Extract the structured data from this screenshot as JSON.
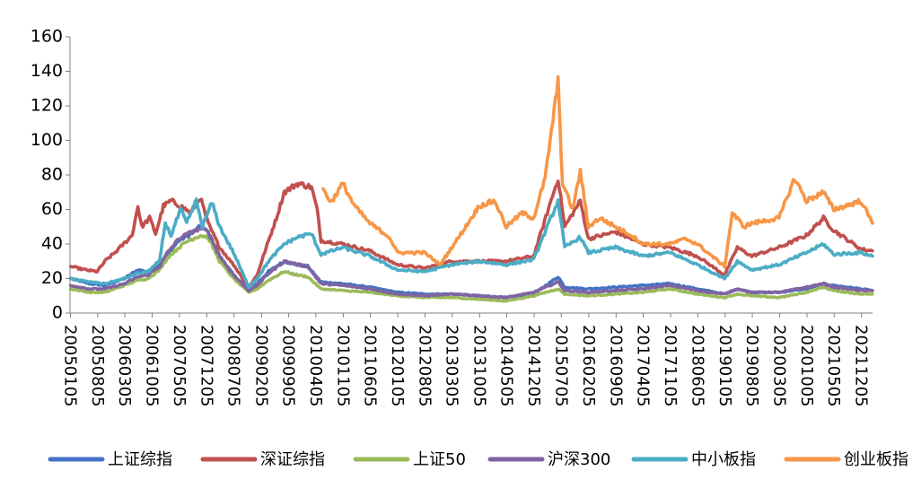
{
  "chart_data": {
    "type": "line",
    "title": "",
    "xlabel": "",
    "ylabel": "",
    "ylim": [
      0,
      160
    ],
    "yticks": [
      0,
      20,
      40,
      60,
      80,
      100,
      120,
      140,
      160
    ],
    "xlim": [
      20050101,
      20220301
    ],
    "xticks": [
      "20050105",
      "20050805",
      "20060305",
      "20061005",
      "20070505",
      "20071205",
      "20080705",
      "20090205",
      "20090905",
      "20100405",
      "20101105",
      "20110605",
      "20120105",
      "20120805",
      "20130305",
      "20131005",
      "20140505",
      "20141205",
      "20150705",
      "20160205",
      "20160905",
      "20170405",
      "20171105",
      "20180605",
      "20190105",
      "20190805",
      "20200305",
      "20201005",
      "20210505",
      "20211205"
    ],
    "grid": false,
    "legend": "bottom",
    "colors": {
      "上证综指": "#4472c4",
      "深证综指": "#c0504d",
      "上证50": "#9bbb59",
      "沪深300": "#8064a2",
      "中小板指": "#4bacc6",
      "创业板指": "#f79646"
    },
    "series": [
      {
        "name": "上证综指",
        "points": [
          [
            "2005-01-05",
            20
          ],
          [
            "2005-06-01",
            17
          ],
          [
            "2005-10-01",
            16
          ],
          [
            "2006-03-01",
            20
          ],
          [
            "2006-06-15",
            25
          ],
          [
            "2006-09-01",
            24
          ],
          [
            "2006-12-01",
            28
          ],
          [
            "2007-02-01",
            34
          ],
          [
            "2007-05-01",
            42
          ],
          [
            "2007-07-15",
            45
          ],
          [
            "2007-10-15",
            50
          ],
          [
            "2007-12-15",
            47
          ],
          [
            "2008-03-15",
            33
          ],
          [
            "2008-07-01",
            22
          ],
          [
            "2008-10-28",
            14
          ],
          [
            "2009-01-01",
            17
          ],
          [
            "2009-04-01",
            24
          ],
          [
            "2009-08-01",
            30
          ],
          [
            "2009-11-15",
            28
          ],
          [
            "2010-02-01",
            27
          ],
          [
            "2010-05-15",
            18
          ],
          [
            "2010-11-01",
            17
          ],
          [
            "2011-06-01",
            15
          ],
          [
            "2012-01-01",
            12
          ],
          [
            "2012-08-01",
            11
          ],
          [
            "2013-03-01",
            11
          ],
          [
            "2013-10-01",
            10
          ],
          [
            "2014-05-01",
            9
          ],
          [
            "2014-12-01",
            11
          ],
          [
            "2015-06-10",
            21
          ],
          [
            "2015-08-01",
            15
          ],
          [
            "2016-02-01",
            14
          ],
          [
            "2016-09-01",
            15
          ],
          [
            "2017-04-01",
            16
          ],
          [
            "2017-11-01",
            17
          ],
          [
            "2018-06-01",
            14
          ],
          [
            "2019-01-01",
            11
          ],
          [
            "2019-04-10",
            14
          ],
          [
            "2019-08-01",
            12
          ],
          [
            "2020-03-01",
            12
          ],
          [
            "2020-10-01",
            14
          ],
          [
            "2021-02-10",
            17
          ],
          [
            "2021-05-01",
            16
          ],
          [
            "2021-12-01",
            14
          ],
          [
            "2022-02-28",
            13
          ]
        ]
      },
      {
        "name": "深证综指",
        "points": [
          [
            "2005-01-05",
            27
          ],
          [
            "2005-05-01",
            25
          ],
          [
            "2005-08-01",
            24
          ],
          [
            "2005-10-01",
            30
          ],
          [
            "2006-01-01",
            36
          ],
          [
            "2006-05-01",
            45
          ],
          [
            "2006-06-15",
            62
          ],
          [
            "2006-07-15",
            50
          ],
          [
            "2006-09-15",
            55
          ],
          [
            "2006-11-01",
            46
          ],
          [
            "2007-01-01",
            62
          ],
          [
            "2007-03-01",
            65
          ],
          [
            "2007-05-15",
            62
          ],
          [
            "2007-08-01",
            58
          ],
          [
            "2007-10-15",
            67
          ],
          [
            "2007-12-15",
            52
          ],
          [
            "2008-03-15",
            38
          ],
          [
            "2008-07-01",
            28
          ],
          [
            "2008-10-28",
            15
          ],
          [
            "2009-01-01",
            22
          ],
          [
            "2009-04-01",
            42
          ],
          [
            "2009-06-01",
            55
          ],
          [
            "2009-08-01",
            70
          ],
          [
            "2009-11-15",
            75
          ],
          [
            "2010-03-01",
            73
          ],
          [
            "2010-04-15",
            60
          ],
          [
            "2010-05-15",
            42
          ],
          [
            "2010-11-01",
            40
          ],
          [
            "2011-06-01",
            36
          ],
          [
            "2012-01-01",
            28
          ],
          [
            "2012-08-01",
            26
          ],
          [
            "2013-03-01",
            30
          ],
          [
            "2013-10-01",
            30
          ],
          [
            "2014-05-01",
            30
          ],
          [
            "2014-12-01",
            33
          ],
          [
            "2015-06-10",
            78
          ],
          [
            "2015-08-01",
            50
          ],
          [
            "2015-12-01",
            65
          ],
          [
            "2016-02-01",
            43
          ],
          [
            "2016-09-01",
            47
          ],
          [
            "2017-04-01",
            40
          ],
          [
            "2017-11-01",
            38
          ],
          [
            "2018-06-01",
            33
          ],
          [
            "2019-01-01",
            22
          ],
          [
            "2019-04-10",
            38
          ],
          [
            "2019-08-01",
            33
          ],
          [
            "2020-03-01",
            38
          ],
          [
            "2020-10-01",
            45
          ],
          [
            "2021-02-10",
            55
          ],
          [
            "2021-05-01",
            48
          ],
          [
            "2021-12-01",
            37
          ],
          [
            "2022-02-28",
            36
          ]
        ]
      },
      {
        "name": "上证50",
        "points": [
          [
            "2005-01-05",
            14
          ],
          [
            "2005-06-01",
            12
          ],
          [
            "2005-10-01",
            12
          ],
          [
            "2006-03-01",
            16
          ],
          [
            "2006-06-15",
            19
          ],
          [
            "2006-09-01",
            20
          ],
          [
            "2006-12-01",
            25
          ],
          [
            "2007-02-01",
            32
          ],
          [
            "2007-05-01",
            38
          ],
          [
            "2007-07-15",
            42
          ],
          [
            "2007-10-15",
            45
          ],
          [
            "2007-12-15",
            44
          ],
          [
            "2008-03-15",
            30
          ],
          [
            "2008-07-01",
            20
          ],
          [
            "2008-10-28",
            12
          ],
          [
            "2009-01-01",
            14
          ],
          [
            "2009-04-01",
            19
          ],
          [
            "2009-08-01",
            24
          ],
          [
            "2009-11-15",
            22
          ],
          [
            "2010-02-01",
            21
          ],
          [
            "2010-05-15",
            14
          ],
          [
            "2010-11-01",
            13
          ],
          [
            "2011-06-01",
            12
          ],
          [
            "2012-01-01",
            10
          ],
          [
            "2012-08-01",
            9
          ],
          [
            "2013-03-01",
            9
          ],
          [
            "2013-10-01",
            8
          ],
          [
            "2014-05-01",
            7
          ],
          [
            "2014-12-01",
            10
          ],
          [
            "2015-06-10",
            14
          ],
          [
            "2015-08-01",
            11
          ],
          [
            "2016-02-01",
            10
          ],
          [
            "2016-09-01",
            11
          ],
          [
            "2017-04-01",
            12
          ],
          [
            "2017-11-01",
            14
          ],
          [
            "2018-06-01",
            11
          ],
          [
            "2019-01-01",
            9
          ],
          [
            "2019-04-10",
            11
          ],
          [
            "2019-08-01",
            10
          ],
          [
            "2020-03-01",
            9
          ],
          [
            "2020-10-01",
            12
          ],
          [
            "2021-02-10",
            15
          ],
          [
            "2021-05-01",
            13
          ],
          [
            "2021-12-01",
            11
          ],
          [
            "2022-02-28",
            11
          ]
        ]
      },
      {
        "name": "沪深300",
        "points": [
          [
            "2005-01-05",
            16
          ],
          [
            "2005-06-01",
            14
          ],
          [
            "2005-10-01",
            14
          ],
          [
            "2006-03-01",
            17
          ],
          [
            "2006-06-15",
            21
          ],
          [
            "2006-09-01",
            22
          ],
          [
            "2006-12-01",
            27
          ],
          [
            "2007-02-01",
            35
          ],
          [
            "2007-05-01",
            43
          ],
          [
            "2007-07-15",
            46
          ],
          [
            "2007-10-15",
            49
          ],
          [
            "2007-12-15",
            47
          ],
          [
            "2008-03-15",
            33
          ],
          [
            "2008-07-01",
            22
          ],
          [
            "2008-10-28",
            13
          ],
          [
            "2009-01-01",
            16
          ],
          [
            "2009-04-01",
            23
          ],
          [
            "2009-08-01",
            30
          ],
          [
            "2009-11-15",
            28
          ],
          [
            "2010-02-01",
            27
          ],
          [
            "2010-05-15",
            17
          ],
          [
            "2010-11-01",
            16
          ],
          [
            "2011-06-01",
            14
          ],
          [
            "2012-01-01",
            11
          ],
          [
            "2012-08-01",
            10
          ],
          [
            "2013-03-01",
            11
          ],
          [
            "2013-10-01",
            10
          ],
          [
            "2014-05-01",
            9
          ],
          [
            "2014-12-01",
            12
          ],
          [
            "2015-06-10",
            18
          ],
          [
            "2015-08-01",
            13
          ],
          [
            "2016-02-01",
            12
          ],
          [
            "2016-09-01",
            13
          ],
          [
            "2017-04-01",
            14
          ],
          [
            "2017-11-01",
            16
          ],
          [
            "2018-06-01",
            13
          ],
          [
            "2019-01-01",
            11
          ],
          [
            "2019-04-10",
            14
          ],
          [
            "2019-08-01",
            12
          ],
          [
            "2020-03-01",
            12
          ],
          [
            "2020-10-01",
            15
          ],
          [
            "2021-02-10",
            17
          ],
          [
            "2021-05-01",
            15
          ],
          [
            "2021-12-01",
            13
          ],
          [
            "2022-02-28",
            13
          ]
        ]
      },
      {
        "name": "中小板指",
        "points": [
          [
            "2005-01-05",
            20
          ],
          [
            "2005-06-01",
            18
          ],
          [
            "2005-10-01",
            17
          ],
          [
            "2006-03-01",
            20
          ],
          [
            "2006-06-15",
            23
          ],
          [
            "2006-09-01",
            24
          ],
          [
            "2006-12-01",
            30
          ],
          [
            "2007-01-15",
            52
          ],
          [
            "2007-03-01",
            45
          ],
          [
            "2007-05-15",
            60
          ],
          [
            "2007-07-01",
            52
          ],
          [
            "2007-09-15",
            65
          ],
          [
            "2007-11-01",
            50
          ],
          [
            "2008-01-15",
            64
          ],
          [
            "2008-03-15",
            50
          ],
          [
            "2008-07-01",
            35
          ],
          [
            "2008-10-28",
            15
          ],
          [
            "2009-01-01",
            20
          ],
          [
            "2009-04-01",
            30
          ],
          [
            "2009-08-01",
            40
          ],
          [
            "2009-11-15",
            44
          ],
          [
            "2010-03-01",
            46
          ],
          [
            "2010-05-15",
            34
          ],
          [
            "2010-11-01",
            38
          ],
          [
            "2011-06-01",
            33
          ],
          [
            "2012-01-01",
            25
          ],
          [
            "2012-08-01",
            24
          ],
          [
            "2013-03-01",
            28
          ],
          [
            "2013-10-01",
            30
          ],
          [
            "2014-05-01",
            28
          ],
          [
            "2014-12-01",
            31
          ],
          [
            "2015-06-10",
            65
          ],
          [
            "2015-08-01",
            38
          ],
          [
            "2015-12-01",
            44
          ],
          [
            "2016-02-01",
            35
          ],
          [
            "2016-09-01",
            38
          ],
          [
            "2017-04-01",
            33
          ],
          [
            "2017-11-01",
            35
          ],
          [
            "2018-06-01",
            28
          ],
          [
            "2019-01-01",
            20
          ],
          [
            "2019-04-10",
            30
          ],
          [
            "2019-08-01",
            25
          ],
          [
            "2020-03-01",
            28
          ],
          [
            "2020-10-01",
            35
          ],
          [
            "2021-02-10",
            40
          ],
          [
            "2021-05-01",
            34
          ],
          [
            "2021-12-01",
            35
          ],
          [
            "2022-02-28",
            33
          ]
        ]
      },
      {
        "name": "创业板指",
        "points": [
          [
            "2010-06-01",
            72
          ],
          [
            "2010-08-01",
            64
          ],
          [
            "2010-11-01",
            75
          ],
          [
            "2011-02-01",
            62
          ],
          [
            "2011-06-01",
            52
          ],
          [
            "2011-11-01",
            44
          ],
          [
            "2012-01-01",
            35
          ],
          [
            "2012-08-01",
            35
          ],
          [
            "2012-12-01",
            28
          ],
          [
            "2013-03-01",
            38
          ],
          [
            "2013-06-01",
            48
          ],
          [
            "2013-10-01",
            62
          ],
          [
            "2014-02-01",
            65
          ],
          [
            "2014-05-01",
            50
          ],
          [
            "2014-09-01",
            58
          ],
          [
            "2014-12-01",
            55
          ],
          [
            "2015-03-01",
            78
          ],
          [
            "2015-06-10",
            134
          ],
          [
            "2015-07-15",
            75
          ],
          [
            "2015-10-01",
            60
          ],
          [
            "2015-12-01",
            82
          ],
          [
            "2016-02-01",
            50
          ],
          [
            "2016-05-01",
            55
          ],
          [
            "2016-09-01",
            50
          ],
          [
            "2017-01-01",
            45
          ],
          [
            "2017-04-01",
            40
          ],
          [
            "2017-11-01",
            40
          ],
          [
            "2018-03-01",
            43
          ],
          [
            "2018-06-01",
            40
          ],
          [
            "2019-01-01",
            27
          ],
          [
            "2019-03-01",
            58
          ],
          [
            "2019-06-01",
            50
          ],
          [
            "2019-08-01",
            52
          ],
          [
            "2020-03-01",
            55
          ],
          [
            "2020-07-01",
            78
          ],
          [
            "2020-10-01",
            65
          ],
          [
            "2021-02-10",
            70
          ],
          [
            "2021-05-01",
            60
          ],
          [
            "2021-08-01",
            62
          ],
          [
            "2021-12-01",
            65
          ],
          [
            "2022-02-28",
            52
          ]
        ]
      }
    ]
  }
}
